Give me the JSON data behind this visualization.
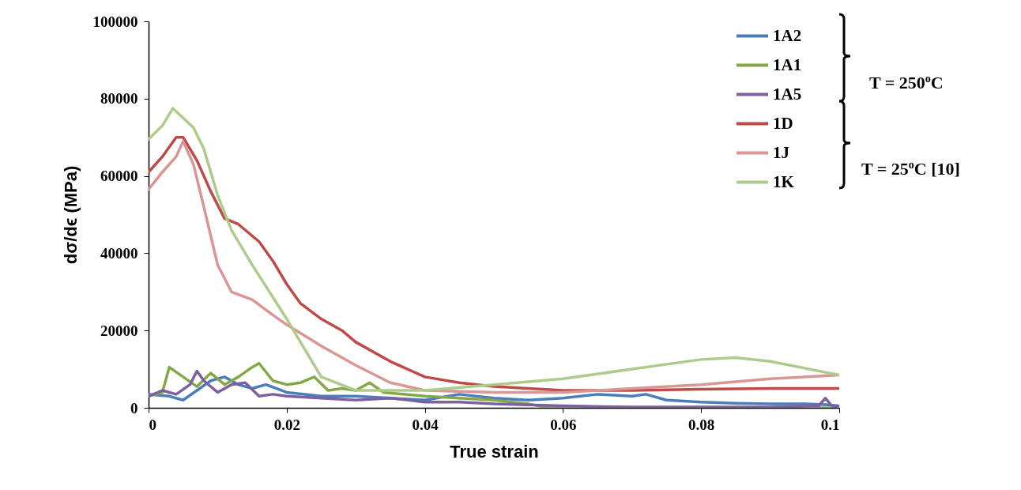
{
  "chart_data": {
    "type": "line",
    "xlabel": "True strain",
    "ylabel": "dσ/dϵ (MPa)",
    "xlim": [
      0,
      0.1
    ],
    "xticks": [
      0,
      0.02,
      0.04,
      0.06,
      0.08,
      0.1
    ],
    "ylim": [
      0,
      100000
    ],
    "yticks": [
      0,
      20000,
      40000,
      60000,
      80000,
      100000
    ],
    "grid": false,
    "legend": "top right",
    "marker": "none",
    "line_style": "solid",
    "annotations": [
      "T = 250$^{o}$C",
      "T = 25$^{o}$C [10]"
    ],
    "series": [
      {
        "name": "1A2",
        "color": "#4a7ebb",
        "x": [
          0,
          0.003,
          0.005,
          0.007,
          0.009,
          0.011,
          0.013,
          0.015,
          0.017,
          0.02,
          0.025,
          0.03,
          0.035,
          0.04,
          0.045,
          0.05,
          0.055,
          0.06,
          0.065,
          0.07,
          0.072,
          0.075,
          0.08,
          0.085,
          0.09,
          0.095,
          0.098,
          0.1
        ],
        "values": [
          3500,
          3000,
          2000,
          4500,
          7000,
          8000,
          6000,
          5000,
          6000,
          4000,
          3000,
          3000,
          2500,
          2000,
          3500,
          2500,
          2000,
          2500,
          3500,
          3000,
          3500,
          2000,
          1500,
          1200,
          1000,
          1000,
          800,
          500
        ]
      },
      {
        "name": "1A1",
        "color": "#85a847",
        "x": [
          0,
          0.002,
          0.003,
          0.005,
          0.007,
          0.009,
          0.011,
          0.013,
          0.015,
          0.016,
          0.018,
          0.02,
          0.022,
          0.024,
          0.026,
          0.028,
          0.03,
          0.032,
          0.034,
          0.04,
          0.045,
          0.05,
          0.055,
          0.058,
          0.07,
          0.08,
          0.09,
          0.1
        ],
        "values": [
          3000,
          4000,
          10500,
          8000,
          5500,
          9000,
          6000,
          8000,
          10500,
          11500,
          7000,
          6000,
          6500,
          8000,
          4500,
          5000,
          4500,
          6500,
          4000,
          3000,
          2500,
          2000,
          1000,
          0,
          0,
          0,
          0,
          0
        ]
      },
      {
        "name": "1A5",
        "color": "#7d60a0",
        "x": [
          0,
          0.002,
          0.004,
          0.006,
          0.007,
          0.008,
          0.01,
          0.012,
          0.014,
          0.016,
          0.018,
          0.02,
          0.025,
          0.03,
          0.035,
          0.04,
          0.045,
          0.05,
          0.06,
          0.07,
          0.08,
          0.09,
          0.097,
          0.098,
          0.099,
          0.1
        ],
        "values": [
          3000,
          4500,
          3500,
          6000,
          9500,
          7000,
          4000,
          6000,
          6500,
          3000,
          3500,
          3000,
          2500,
          2000,
          2500,
          1500,
          1500,
          1000,
          500,
          200,
          200,
          200,
          500,
          2500,
          300,
          200
        ]
      },
      {
        "name": "1D",
        "color": "#be4b48",
        "x": [
          0,
          0.002,
          0.004,
          0.005,
          0.007,
          0.009,
          0.011,
          0.013,
          0.016,
          0.018,
          0.02,
          0.022,
          0.025,
          0.028,
          0.03,
          0.035,
          0.04,
          0.045,
          0.05,
          0.06,
          0.07,
          0.08,
          0.09,
          0.1
        ],
        "values": [
          61000,
          65000,
          70000,
          70000,
          64000,
          56000,
          49000,
          47500,
          43000,
          38000,
          32000,
          27000,
          23000,
          20000,
          17000,
          12000,
          8000,
          6500,
          5500,
          4500,
          4500,
          4800,
          5000,
          5000
        ]
      },
      {
        "name": "1J",
        "color": "#d99694",
        "x": [
          0,
          0.002,
          0.004,
          0.005,
          0.0065,
          0.008,
          0.01,
          0.012,
          0.015,
          0.018,
          0.02,
          0.025,
          0.03,
          0.035,
          0.04,
          0.05,
          0.06,
          0.07,
          0.08,
          0.09,
          0.1
        ],
        "values": [
          56500,
          61000,
          65000,
          69000,
          63000,
          52000,
          37000,
          30000,
          28000,
          24000,
          21500,
          16000,
          11000,
          6500,
          4500,
          4000,
          4000,
          5000,
          6000,
          7500,
          8500
        ]
      },
      {
        "name": "1K",
        "color": "#aecb8c",
        "x": [
          0,
          0.002,
          0.0035,
          0.005,
          0.0065,
          0.008,
          0.01,
          0.012,
          0.015,
          0.02,
          0.025,
          0.03,
          0.04,
          0.05,
          0.06,
          0.07,
          0.08,
          0.085,
          0.09,
          0.1
        ],
        "values": [
          69500,
          73000,
          77500,
          75000,
          72500,
          67000,
          55000,
          46000,
          37000,
          23000,
          8000,
          4500,
          4500,
          6000,
          7500,
          10000,
          12500,
          13000,
          12000,
          8500
        ]
      }
    ]
  }
}
